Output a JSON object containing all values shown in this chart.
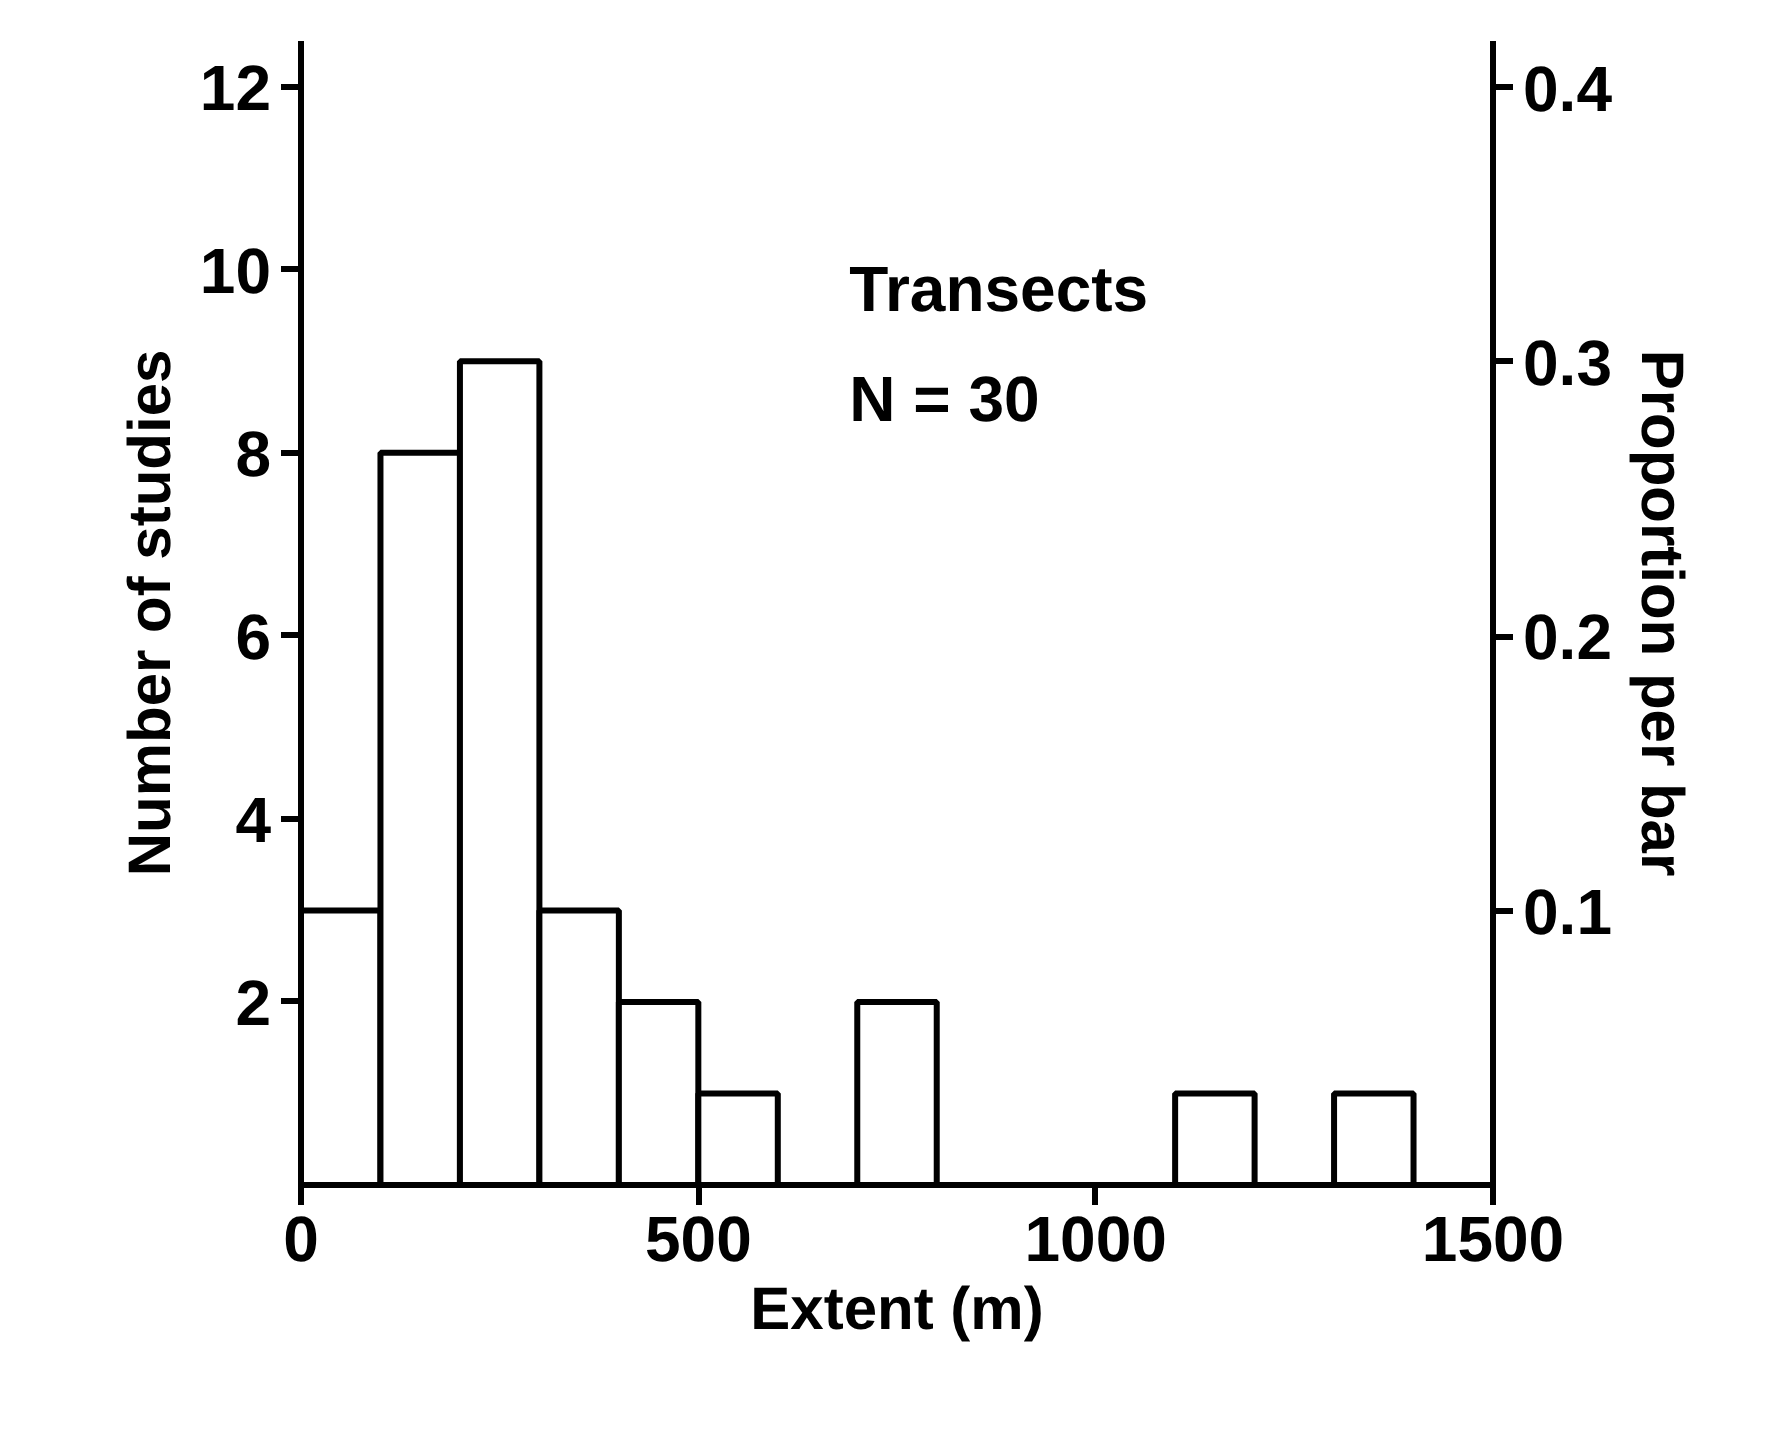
{
  "chart_data": {
    "type": "histogram",
    "xlabel": "Extent (m)",
    "ylabel": "Number of studies",
    "y2label": "Proportion per bar",
    "annotations": [
      "Transects",
      "N = 30"
    ],
    "bins": [
      0,
      100,
      200,
      300,
      400,
      500,
      600,
      700,
      800,
      900,
      1000,
      1100,
      1200,
      1300,
      1400
    ],
    "values": [
      3,
      8,
      9,
      3,
      2,
      1,
      0,
      2,
      0,
      0,
      0,
      1,
      0,
      1
    ],
    "color": "#ffffff",
    "xlim": [
      0,
      1500
    ],
    "xticks": [
      0,
      500,
      1000,
      1500
    ],
    "ylim": [
      0,
      12.5
    ],
    "yticks": [
      2,
      4,
      6,
      8,
      10,
      12
    ],
    "y2lim": [
      0,
      0.417
    ],
    "y2ticks": [
      0.1,
      0.2,
      0.3,
      0.4
    ]
  }
}
